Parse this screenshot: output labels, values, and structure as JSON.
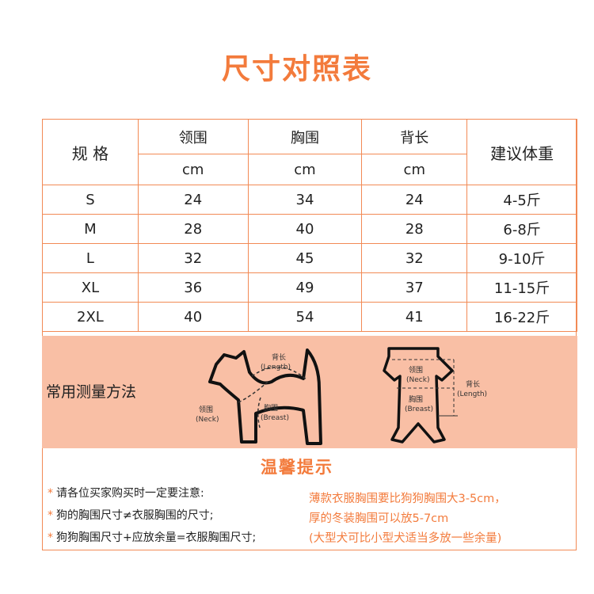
{
  "title": "尺寸对照表",
  "table": {
    "header": {
      "size": "规  格",
      "neck": "领围",
      "chest": "胸围",
      "back": "背长",
      "weight": "建议体重",
      "unit": "cm"
    },
    "rows": [
      {
        "size": "S",
        "neck": "24",
        "chest": "34",
        "back": "24",
        "weight": "4-5斤"
      },
      {
        "size": "M",
        "neck": "28",
        "chest": "40",
        "back": "28",
        "weight": "6-8斤"
      },
      {
        "size": "L",
        "neck": "32",
        "chest": "45",
        "back": "32",
        "weight": "9-10斤"
      },
      {
        "size": "XL",
        "neck": "36",
        "chest": "49",
        "back": "37",
        "weight": "11-15斤"
      },
      {
        "size": "2XL",
        "neck": "40",
        "chest": "54",
        "back": "41",
        "weight": "16-22斤"
      }
    ]
  },
  "method": {
    "label": "常用测量方法",
    "dog": {
      "back_cn": "背长",
      "back_en": "(Length)",
      "neck_cn": "领围",
      "neck_en": "(Neck)",
      "chest_cn": "胸围",
      "chest_en": "(Breast)"
    },
    "cloth": {
      "neck_cn": "领围",
      "neck_en": "(Neck)",
      "chest_cn": "胸围",
      "chest_en": "(Breast)",
      "back_cn": "背长",
      "back_en": "(Length)"
    }
  },
  "tips": {
    "title": "温馨提示",
    "star": "*",
    "left": [
      "请各位买家购买时一定要注意:",
      "狗的胸围尺寸≠衣服胸围的尺寸;",
      "狗狗胸围尺寸+应放余量=衣服胸围尺寸;"
    ],
    "right": [
      "薄款衣服胸围要比狗狗胸围大3-5cm，",
      "厚的冬装胸围可以放5-7cm",
      "(大型犬可比小型犬适当多放一些余量)"
    ]
  },
  "colors": {
    "accent": "#f37b3c",
    "border": "#f28a55",
    "band": "#f9bfa5"
  }
}
